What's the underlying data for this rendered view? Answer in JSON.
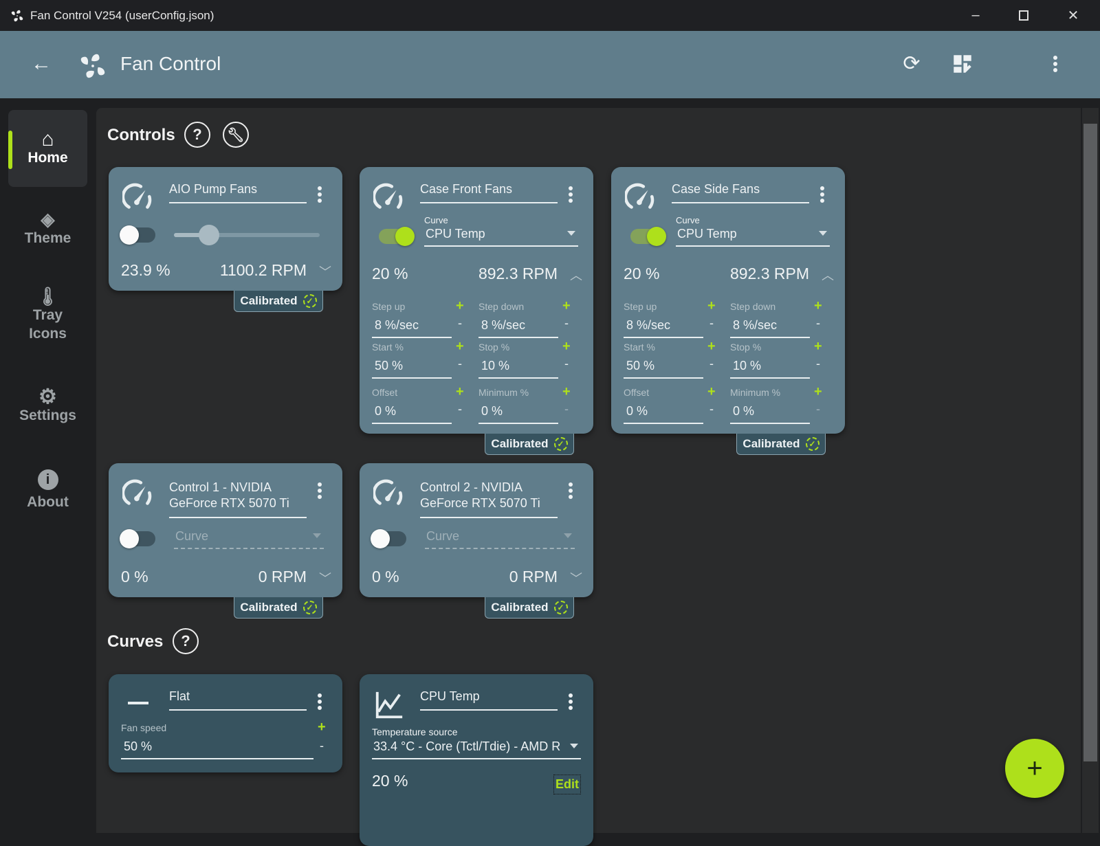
{
  "window": {
    "title": "Fan Control V254 (userConfig.json)"
  },
  "header": {
    "title": "Fan Control"
  },
  "sidebar": {
    "items": [
      {
        "label": "Home"
      },
      {
        "label": "Theme"
      },
      {
        "label": "Tray Icons"
      },
      {
        "label": "Settings"
      },
      {
        "label": "About"
      }
    ]
  },
  "sections": {
    "controls": "Controls",
    "curves": "Curves",
    "help": "?"
  },
  "controls": [
    {
      "name": "AIO Pump Fans",
      "enabled": false,
      "slider_percent": 23.9,
      "percent": "23.9 %",
      "rpm": "1100.2 RPM",
      "badge": "Calibrated"
    },
    {
      "name": "Case Front Fans",
      "enabled": true,
      "curve_label": "Curve",
      "curve": "CPU Temp",
      "percent": "20 %",
      "rpm": "892.3 RPM",
      "badge": "Calibrated",
      "fields": [
        {
          "label": "Step up",
          "value": "8 %/sec"
        },
        {
          "label": "Step down",
          "value": "8 %/sec"
        },
        {
          "label": "Start %",
          "value": "50 %"
        },
        {
          "label": "Stop %",
          "value": "10 %"
        },
        {
          "label": "Offset",
          "value": "0 %"
        },
        {
          "label": "Minimum %",
          "value": "0 %"
        }
      ]
    },
    {
      "name": "Case Side Fans",
      "enabled": true,
      "curve_label": "Curve",
      "curve": "CPU Temp",
      "percent": "20 %",
      "rpm": "892.3 RPM",
      "badge": "Calibrated",
      "fields": [
        {
          "label": "Step up",
          "value": "8 %/sec"
        },
        {
          "label": "Step down",
          "value": "8 %/sec"
        },
        {
          "label": "Start %",
          "value": "50 %"
        },
        {
          "label": "Stop %",
          "value": "10 %"
        },
        {
          "label": "Offset",
          "value": "0 %"
        },
        {
          "label": "Minimum %",
          "value": "0 %"
        }
      ]
    },
    {
      "name": "Control 1 - NVIDIA GeForce RTX 5070 Ti",
      "enabled": false,
      "curve_placeholder": "Curve",
      "percent": "0 %",
      "rpm": "0 RPM",
      "badge": "Calibrated"
    },
    {
      "name": "Control 2 - NVIDIA GeForce RTX 5070 Ti",
      "enabled": false,
      "curve_placeholder": "Curve",
      "percent": "0 %",
      "rpm": "0 RPM",
      "badge": "Calibrated"
    }
  ],
  "curves": [
    {
      "name": "Flat",
      "field_label": "Fan speed",
      "value": "50 %"
    },
    {
      "name": "CPU Temp",
      "source_label": "Temperature source",
      "source": "33.4 °C - Core (Tctl/Tdie) - AMD R",
      "output": "20 %",
      "edit_label": "Edit"
    }
  ],
  "symbols": {
    "plus": "+",
    "minus": "-"
  },
  "colors": {
    "accent": "#aee01b",
    "header": "#607d8b",
    "card": "#607d8b",
    "curve_card": "#37535f"
  }
}
